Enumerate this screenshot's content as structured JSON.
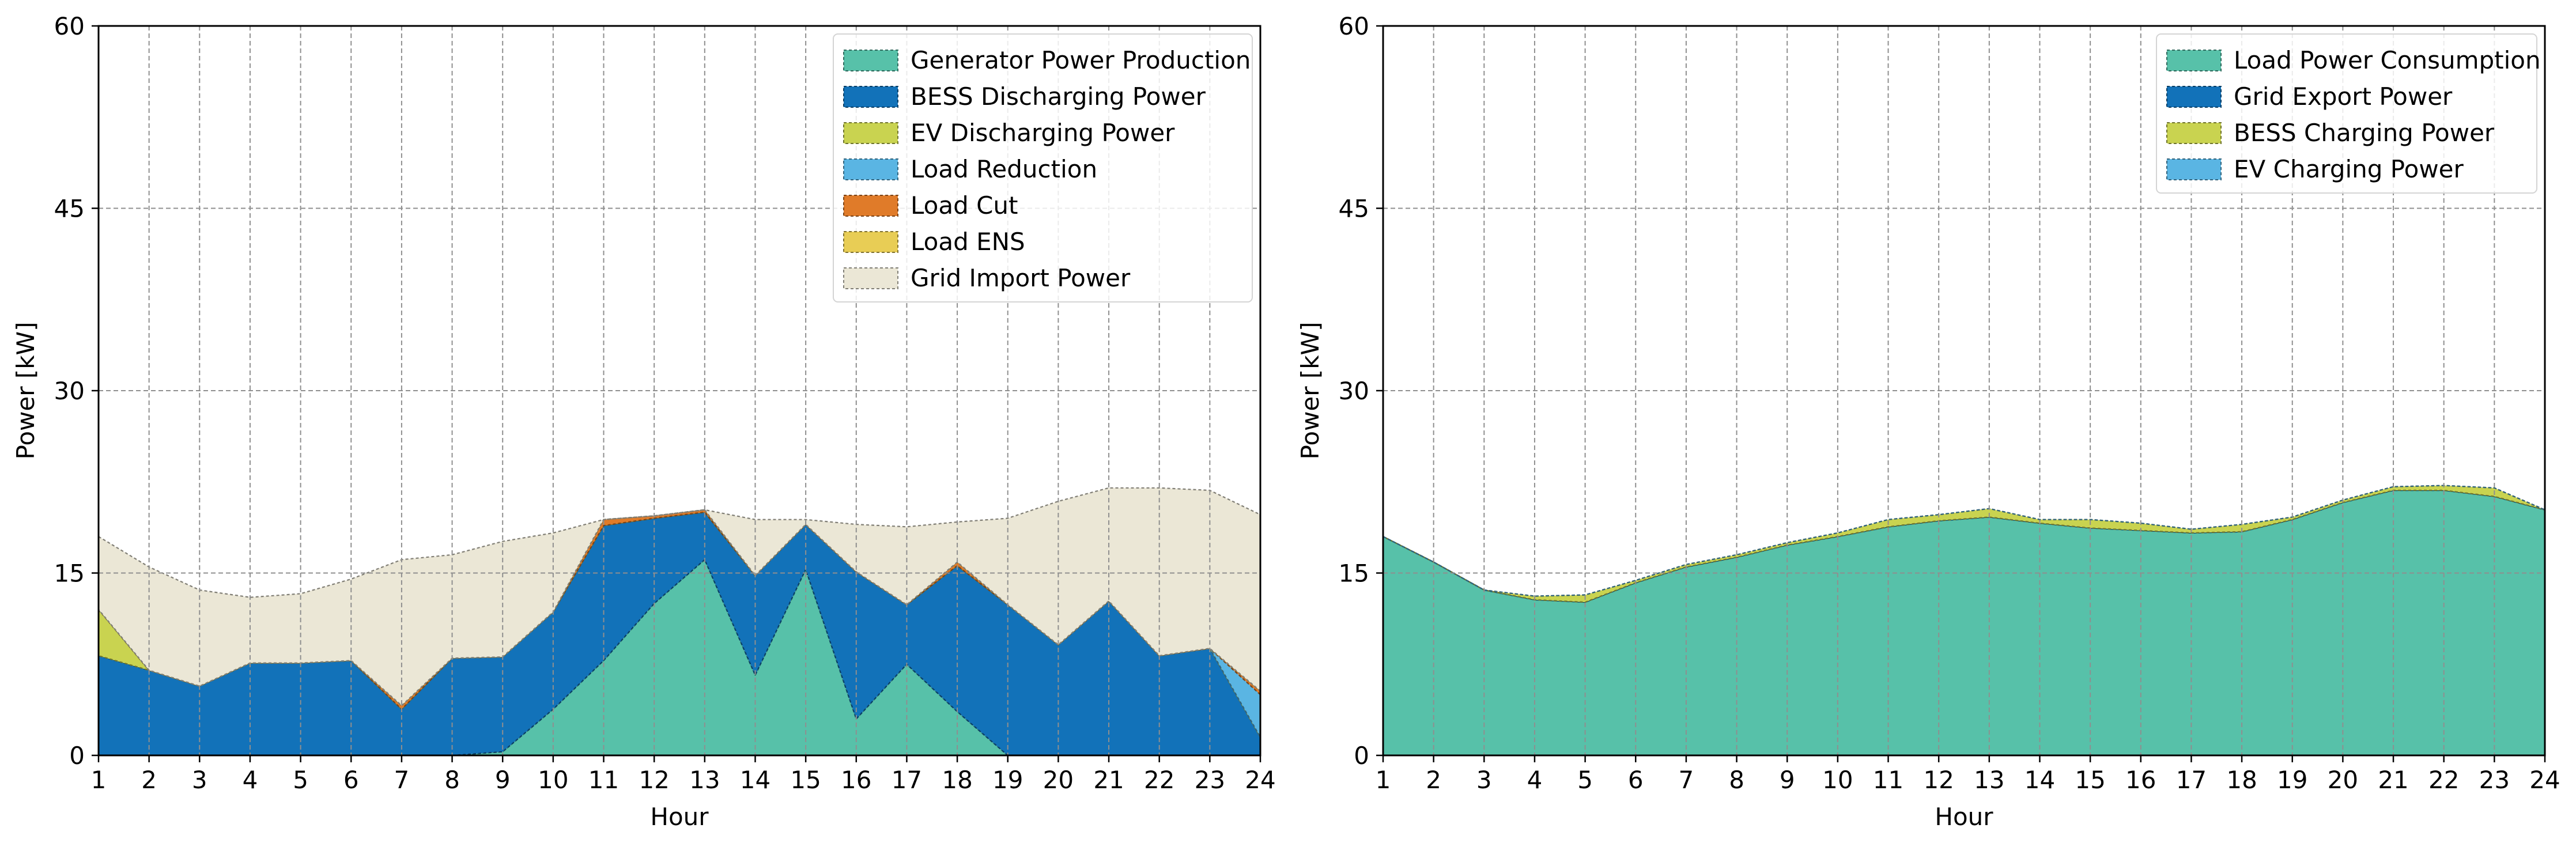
{
  "chart_data": [
    {
      "type": "area",
      "stacked": true,
      "x": [
        1,
        2,
        3,
        4,
        5,
        6,
        7,
        8,
        9,
        10,
        11,
        12,
        13,
        14,
        15,
        16,
        17,
        18,
        19,
        20,
        21,
        22,
        23,
        24
      ],
      "xlabel": "Hour",
      "ylabel": "Power [kW]",
      "xlim": [
        1,
        24
      ],
      "ylim": [
        0,
        60
      ],
      "xticks": [
        "1",
        "2",
        "3",
        "4",
        "5",
        "6",
        "7",
        "8",
        "9",
        "10",
        "11",
        "12",
        "13",
        "14",
        "15",
        "16",
        "17",
        "18",
        "19",
        "20",
        "21",
        "22",
        "23",
        "24"
      ],
      "yticks": [
        "0",
        "15",
        "30",
        "45",
        "60"
      ],
      "grid": true,
      "legend_position": "top-right",
      "series": [
        {
          "name": "Generator Power Production",
          "color": "#57c1a9",
          "values": [
            0,
            0,
            0,
            0,
            0,
            0,
            0,
            0,
            0.3,
            3.8,
            7.8,
            12.5,
            16.1,
            6.6,
            15.3,
            3.0,
            7.5,
            3.6,
            0,
            0,
            0,
            0,
            0,
            0
          ]
        },
        {
          "name": "BESS Discharging Power",
          "color": "#1272b9",
          "values": [
            8.2,
            7.0,
            5.7,
            7.6,
            7.6,
            7.8,
            3.8,
            8.0,
            7.8,
            8.0,
            11.1,
            7.0,
            3.9,
            8.2,
            3.7,
            12.1,
            4.9,
            12.0,
            12.4,
            9.1,
            12.7,
            8.2,
            8.8,
            1.5
          ]
        },
        {
          "name": "EV Discharging Power",
          "color": "#c9d350",
          "values": [
            3.8,
            0,
            0,
            0,
            0,
            0,
            0,
            0,
            0,
            0,
            0,
            0,
            0,
            0,
            0,
            0,
            0,
            0,
            0,
            0,
            0,
            0,
            0,
            0
          ]
        },
        {
          "name": "Load Reduction",
          "color": "#5ab5e3",
          "values": [
            0,
            0,
            0,
            0,
            0,
            0,
            0,
            0,
            0,
            0,
            0,
            0,
            0,
            0,
            0,
            0,
            0,
            0,
            0,
            0,
            0,
            0,
            0,
            3.5
          ]
        },
        {
          "name": "Load Cut",
          "color": "#e07b29",
          "values": [
            0,
            0,
            0,
            0,
            0,
            0,
            0.3,
            0,
            0,
            0,
            0.5,
            0.2,
            0.2,
            0,
            0,
            0,
            0,
            0.3,
            0,
            0,
            0,
            0,
            0,
            0.3
          ]
        },
        {
          "name": "Load ENS",
          "color": "#e8cd55",
          "values": [
            0,
            0,
            0,
            0,
            0,
            0,
            0,
            0,
            0,
            0,
            0,
            0,
            0,
            0,
            0,
            0,
            0,
            0,
            0,
            0,
            0,
            0,
            0,
            0
          ]
        },
        {
          "name": "Grid Import Power",
          "color": "#ebe7d6",
          "values": [
            6.0,
            8.5,
            7.9,
            5.4,
            5.7,
            6.7,
            12.0,
            8.5,
            9.5,
            6.5,
            0,
            0,
            0,
            4.6,
            0.4,
            3.9,
            6.4,
            3.3,
            7.1,
            11.8,
            9.3,
            13.8,
            13.0,
            14.5
          ]
        }
      ]
    },
    {
      "type": "area",
      "stacked": true,
      "x": [
        1,
        2,
        3,
        4,
        5,
        6,
        7,
        8,
        9,
        10,
        11,
        12,
        13,
        14,
        15,
        16,
        17,
        18,
        19,
        20,
        21,
        22,
        23,
        24
      ],
      "xlabel": "Hour",
      "ylabel": "Power [kW]",
      "xlim": [
        1,
        24
      ],
      "ylim": [
        0,
        60
      ],
      "xticks": [
        "1",
        "2",
        "3",
        "4",
        "5",
        "6",
        "7",
        "8",
        "9",
        "10",
        "11",
        "12",
        "13",
        "14",
        "15",
        "16",
        "17",
        "18",
        "19",
        "20",
        "21",
        "22",
        "23",
        "24"
      ],
      "yticks": [
        "0",
        "15",
        "30",
        "45",
        "60"
      ],
      "grid": true,
      "legend_position": "top-right",
      "series": [
        {
          "name": "Load Power Consumption",
          "color": "#57c1a9",
          "values": [
            18.0,
            15.9,
            13.6,
            12.8,
            12.6,
            14.2,
            15.5,
            16.3,
            17.3,
            18.0,
            18.8,
            19.3,
            19.6,
            19.1,
            18.7,
            18.5,
            18.3,
            18.4,
            19.4,
            20.8,
            21.8,
            21.8,
            21.3,
            20.2
          ]
        },
        {
          "name": "Grid Export Power",
          "color": "#1272b9",
          "values": [
            0,
            0,
            0,
            0,
            0,
            0,
            0,
            0,
            0,
            0,
            0,
            0,
            0,
            0,
            0,
            0,
            0,
            0,
            0,
            0,
            0,
            0,
            0,
            0
          ]
        },
        {
          "name": "BESS Charging Power",
          "color": "#c9d350",
          "values": [
            0,
            0,
            0,
            0.3,
            0.6,
            0.2,
            0.2,
            0.2,
            0.2,
            0.3,
            0.6,
            0.5,
            0.7,
            0.3,
            0.7,
            0.6,
            0.3,
            0.6,
            0.2,
            0.2,
            0.3,
            0.4,
            0.7,
            0
          ]
        },
        {
          "name": "EV Charging Power",
          "color": "#5ab5e3",
          "values": [
            0,
            0,
            0,
            0,
            0,
            0,
            0,
            0,
            0,
            0,
            0,
            0,
            0,
            0,
            0,
            0,
            0,
            0,
            0,
            0,
            0,
            0,
            0,
            0
          ]
        }
      ]
    }
  ]
}
